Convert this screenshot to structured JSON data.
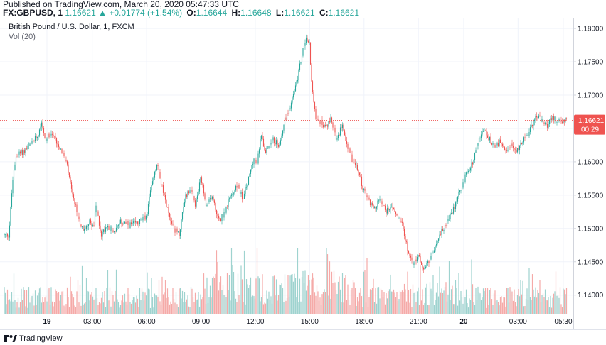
{
  "header": {
    "published": "Published on TradingView.com, March 20, 2020 05:47:33 UTC",
    "symbol": "FX:GBPUSD, 1",
    "last": "1.16621",
    "change": "+0.01774 (+1.54%)",
    "o_label": "O:",
    "o_val": "1.16644",
    "h_label": "H:",
    "h_val": "1.16648",
    "l_label": "L:",
    "l_val": "1.16621",
    "c_label": "C:",
    "c_val": "1.16621"
  },
  "legend": {
    "title": "British Pound / U.S. Dollar, 1, FXCM",
    "volume": "Vol (20)"
  },
  "price_tag": {
    "value": "1.16621",
    "countdown": "00:29",
    "color": "#ef5350"
  },
  "footer": {
    "brand": "TradingView"
  },
  "colors": {
    "up": "#26a69a",
    "down": "#ef5350",
    "vol_up": "#9ed3cf",
    "vol_down": "#f5aaa8"
  },
  "chart_data": {
    "type": "candlestick",
    "y_ticks": [
      "1.18000",
      "1.17500",
      "1.17000",
      "1.16500",
      "1.16000",
      "1.15500",
      "1.15000",
      "1.14500",
      "1.14000"
    ],
    "ylim": [
      1.1372,
      1.1815
    ],
    "x_ticks": [
      {
        "label": "19",
        "bold": true,
        "h": 0.5
      },
      {
        "label": "03:00",
        "bold": false,
        "h": 3
      },
      {
        "label": "06:00",
        "bold": false,
        "h": 6
      },
      {
        "label": "09:00",
        "bold": false,
        "h": 9
      },
      {
        "label": "12:00",
        "bold": false,
        "h": 12
      },
      {
        "label": "15:00",
        "bold": false,
        "h": 15
      },
      {
        "label": "18:00",
        "bold": false,
        "h": 18
      },
      {
        "label": "21:00",
        "bold": false,
        "h": 21
      },
      {
        "label": "20",
        "bold": true,
        "h": 23.5
      },
      {
        "label": "03:00",
        "bold": false,
        "h": 26.5
      },
      {
        "label": "05:30",
        "bold": false,
        "h": 29
      }
    ],
    "last_price": 1.16621,
    "path": [
      [
        -1.6,
        1.149
      ],
      [
        -1.4,
        1.157
      ],
      [
        -1.2,
        1.161
      ],
      [
        -0.8,
        1.1615
      ],
      [
        -0.4,
        1.1625
      ],
      [
        0.0,
        1.164
      ],
      [
        0.2,
        1.1662
      ],
      [
        0.4,
        1.163
      ],
      [
        0.7,
        1.1645
      ],
      [
        1.0,
        1.1632
      ],
      [
        1.3,
        1.1618
      ],
      [
        1.6,
        1.1595
      ],
      [
        1.9,
        1.155
      ],
      [
        2.2,
        1.152
      ],
      [
        2.5,
        1.1495
      ],
      [
        2.8,
        1.151
      ],
      [
        3.1,
        1.1505
      ],
      [
        3.2,
        1.1535
      ],
      [
        3.5,
        1.149
      ],
      [
        3.8,
        1.1505
      ],
      [
        4.2,
        1.1495
      ],
      [
        4.6,
        1.151
      ],
      [
        5.0,
        1.1505
      ],
      [
        5.5,
        1.1508
      ],
      [
        6.0,
        1.1518
      ],
      [
        6.3,
        1.157
      ],
      [
        6.6,
        1.16
      ],
      [
        6.9,
        1.1555
      ],
      [
        7.2,
        1.1525
      ],
      [
        7.5,
        1.15
      ],
      [
        7.8,
        1.149
      ],
      [
        8.1,
        1.1545
      ],
      [
        8.4,
        1.156
      ],
      [
        8.7,
        1.1535
      ],
      [
        9.0,
        1.1575
      ],
      [
        9.3,
        1.153
      ],
      [
        9.6,
        1.155
      ],
      [
        10.0,
        1.151
      ],
      [
        10.3,
        1.1525
      ],
      [
        10.6,
        1.1545
      ],
      [
        11.0,
        1.1565
      ],
      [
        11.3,
        1.1545
      ],
      [
        11.6,
        1.157
      ],
      [
        11.9,
        1.1605
      ],
      [
        12.1,
        1.1595
      ],
      [
        12.3,
        1.164
      ],
      [
        12.6,
        1.1615
      ],
      [
        12.9,
        1.1635
      ],
      [
        13.3,
        1.1625
      ],
      [
        13.6,
        1.166
      ],
      [
        14.0,
        1.169
      ],
      [
        14.3,
        1.172
      ],
      [
        14.6,
        1.1765
      ],
      [
        14.8,
        1.1785
      ],
      [
        15.0,
        1.1775
      ],
      [
        15.1,
        1.172
      ],
      [
        15.3,
        1.167
      ],
      [
        15.6,
        1.166
      ],
      [
        15.9,
        1.165
      ],
      [
        16.2,
        1.1665
      ],
      [
        16.5,
        1.163
      ],
      [
        16.8,
        1.166
      ],
      [
        17.1,
        1.162
      ],
      [
        17.4,
        1.16
      ],
      [
        17.7,
        1.1585
      ],
      [
        18.0,
        1.1555
      ],
      [
        18.3,
        1.154
      ],
      [
        18.6,
        1.153
      ],
      [
        18.9,
        1.1545
      ],
      [
        19.2,
        1.1525
      ],
      [
        19.5,
        1.1535
      ],
      [
        19.8,
        1.152
      ],
      [
        20.1,
        1.151
      ],
      [
        20.4,
        1.147
      ],
      [
        20.7,
        1.1445
      ],
      [
        21.0,
        1.146
      ],
      [
        21.3,
        1.144
      ],
      [
        21.6,
        1.145
      ],
      [
        21.9,
        1.147
      ],
      [
        22.2,
        1.149
      ],
      [
        22.5,
        1.1505
      ],
      [
        22.8,
        1.152
      ],
      [
        23.1,
        1.154
      ],
      [
        23.4,
        1.1565
      ],
      [
        23.7,
        1.1585
      ],
      [
        24.0,
        1.16
      ],
      [
        24.3,
        1.163
      ],
      [
        24.6,
        1.1648
      ],
      [
        24.9,
        1.1635
      ],
      [
        25.2,
        1.162
      ],
      [
        25.5,
        1.163
      ],
      [
        25.8,
        1.1612
      ],
      [
        26.1,
        1.1625
      ],
      [
        26.4,
        1.1615
      ],
      [
        26.7,
        1.1628
      ],
      [
        27.0,
        1.164
      ],
      [
        27.3,
        1.1655
      ],
      [
        27.5,
        1.1672
      ],
      [
        27.8,
        1.166
      ],
      [
        28.1,
        1.1655
      ],
      [
        28.4,
        1.1665
      ],
      [
        28.7,
        1.1662
      ]
    ]
  }
}
